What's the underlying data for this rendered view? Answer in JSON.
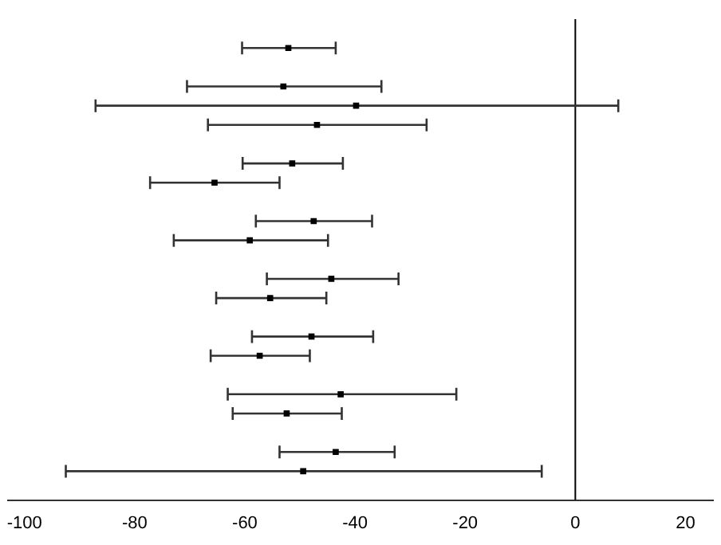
{
  "chart_data": {
    "type": "scatter",
    "orientation": "horizontal",
    "marker": "square",
    "color": "#000000",
    "categories": [
      null,
      null,
      null,
      null,
      null,
      null,
      null,
      null,
      null,
      null,
      null,
      null,
      null,
      null,
      null,
      null,
      null,
      null,
      null,
      null,
      null,
      null,
      null,
      null,
      null
    ],
    "values": [
      null,
      -52.1,
      null,
      -53.0,
      -39.8,
      -46.9,
      null,
      -51.4,
      -65.5,
      null,
      -47.5,
      -59.1,
      null,
      -44.3,
      -55.4,
      null,
      -47.9,
      -57.3,
      null,
      -42.6,
      -52.4,
      null,
      -43.5,
      -49.4,
      null
    ],
    "errors": [
      null,
      [
        -60.5,
        -43.5
      ],
      null,
      [
        -70.5,
        -35.2
      ],
      [
        -87.1,
        7.8
      ],
      [
        -66.7,
        -27.0
      ],
      null,
      [
        -60.4,
        -42.2
      ],
      [
        -77.2,
        -53.7
      ],
      null,
      [
        -58.0,
        -36.9
      ],
      [
        -72.9,
        -44.9
      ],
      null,
      [
        -56.0,
        -32.1
      ],
      [
        -65.2,
        -45.2
      ],
      null,
      [
        -58.7,
        -36.7
      ],
      [
        -66.2,
        -48.2
      ],
      null,
      [
        -63.1,
        -21.6
      ],
      [
        -62.2,
        -42.4
      ],
      null,
      [
        -53.7,
        -32.8
      ],
      [
        -92.5,
        -6.1
      ],
      null
    ],
    "xlim": [
      -103,
      25
    ],
    "xticks": [
      -100,
      -80,
      -60,
      -40,
      -20,
      0,
      20
    ],
    "ref_lines": [
      {
        "axis": "x",
        "value": 0,
        "color": "#000000"
      }
    ]
  }
}
